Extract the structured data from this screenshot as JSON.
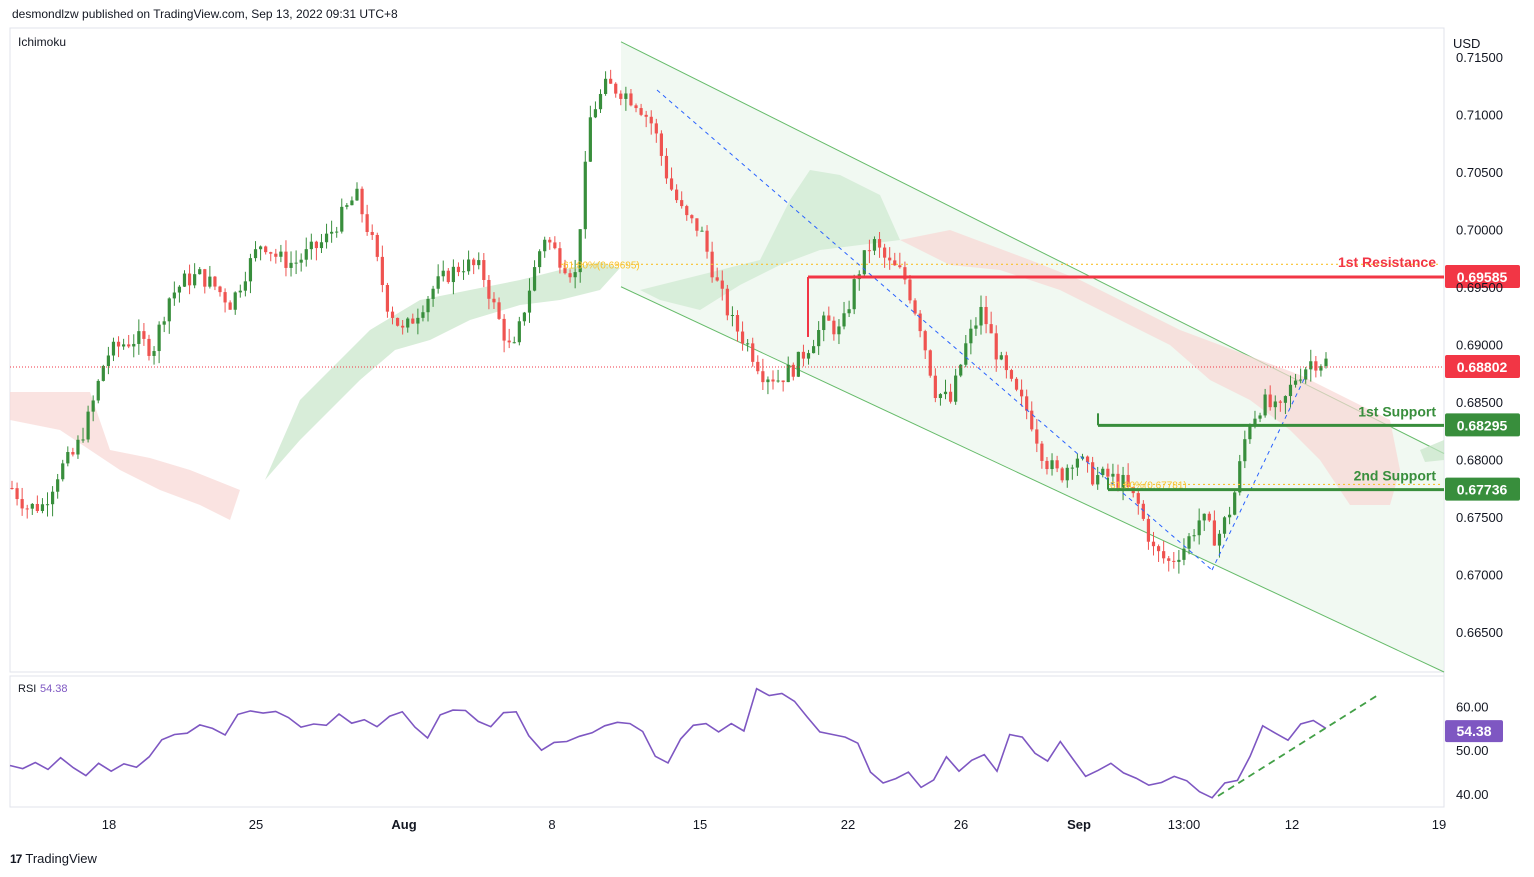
{
  "header": {
    "published": "desmondlzw published on TradingView.com, Sep 13, 2022 09:31 UTC+8"
  },
  "footer": {
    "brand": "TradingView",
    "logo_glyph": "17"
  },
  "colors": {
    "bull": "#26a69a",
    "candle_up": "#388e3c",
    "candle_down": "#ef5350",
    "resistance": "#f23645",
    "support": "#388e3c",
    "rsi": "#7e57c2",
    "channel_fill": "#e8f5e9",
    "cloud_green": "#c8e6c9",
    "cloud_red": "#f8d7d4",
    "fib": "#f9c22e",
    "current": "#f23645"
  },
  "chart_data": [
    {
      "type": "candlestick",
      "title": "",
      "indicator_label": "Ichimoku",
      "currency": "USD",
      "y_ticks": [
        "0.71500",
        "0.71000",
        "0.70500",
        "0.70000",
        "0.69500",
        "0.69000",
        "0.68500",
        "0.68000",
        "0.67500",
        "0.67000",
        "0.66500"
      ],
      "ylim": [
        0.6615,
        0.7175
      ],
      "x_ticks": [
        "18",
        "25",
        "Aug",
        "8",
        "15",
        "22",
        "26",
        "Sep",
        "13:00",
        "12",
        "19"
      ],
      "current_price": {
        "value": 0.68802,
        "label": "0.68802"
      },
      "levels": [
        {
          "name": "1st Resistance",
          "value": 0.69585,
          "label": "0.69585",
          "x_start": 0.6956,
          "kind": "resistance"
        },
        {
          "name": "1st Support",
          "value": 0.68295,
          "label": "0.68295",
          "x_start": 0.683,
          "kind": "support"
        },
        {
          "name": "2nd Support",
          "value": 0.67736,
          "label": "0.67736",
          "x_start": 0.6774,
          "kind": "support"
        }
      ],
      "fib_levels": [
        {
          "label": "61.80%(0.69695)",
          "value": 0.69695
        },
        {
          "label": "61.80%(0.67781)",
          "value": 0.67781
        }
      ],
      "channel": {
        "upper": [
          [
            0.7163,
            0.6805
          ]
        ],
        "lower": [
          [
            0.695,
            0.6615
          ]
        ]
      },
      "series_anchor_prices": [
        0.6775,
        0.6758,
        0.676,
        0.679,
        0.6805,
        0.684,
        0.689,
        0.69,
        0.6905,
        0.6895,
        0.694,
        0.6955,
        0.696,
        0.695,
        0.6935,
        0.6965,
        0.699,
        0.6975,
        0.697,
        0.698,
        0.699,
        0.701,
        0.703,
        0.699,
        0.6935,
        0.691,
        0.693,
        0.695,
        0.6962,
        0.697,
        0.6965,
        0.6925,
        0.689,
        0.6945,
        0.6995,
        0.6975,
        0.696,
        0.71,
        0.7125,
        0.712,
        0.711,
        0.709,
        0.704,
        0.701,
        0.7,
        0.6955,
        0.692,
        0.69,
        0.6875,
        0.687,
        0.688,
        0.69,
        0.692,
        0.691,
        0.696,
        0.699,
        0.697,
        0.696,
        0.692,
        0.686,
        0.685,
        0.69,
        0.693,
        0.689,
        0.686,
        0.684,
        0.68,
        0.6785,
        0.6805,
        0.6785,
        0.6785,
        0.678,
        0.676,
        0.672,
        0.671,
        0.6725,
        0.675,
        0.673,
        0.676,
        0.683,
        0.685,
        0.684,
        0.687,
        0.6885,
        0.6885
      ]
    },
    {
      "type": "line",
      "indicator_label": "RSI",
      "current_value": "54.38",
      "y_ticks": [
        "60.00",
        "50.00",
        "40.00"
      ],
      "ylim": [
        37,
        67
      ],
      "values": [
        46.5,
        45.8,
        47.2,
        45.6,
        48.3,
        46.0,
        44.2,
        47.0,
        45.2,
        46.9,
        46.1,
        48.5,
        52.4,
        53.6,
        53.9,
        55.8,
        55.0,
        53.5,
        58.2,
        59.0,
        58.5,
        58.9,
        57.5,
        55.3,
        56.0,
        55.7,
        58.3,
        56.2,
        57.0,
        55.4,
        57.8,
        58.8,
        55.3,
        52.8,
        58.1,
        59.2,
        59.1,
        56.6,
        55.4,
        58.6,
        58.8,
        53.3,
        50.0,
        51.8,
        52.0,
        53.2,
        54.0,
        55.6,
        56.4,
        56.1,
        54.3,
        48.6,
        47.1,
        52.6,
        55.7,
        56.1,
        54.2,
        56.1,
        54.4,
        64.1,
        62.5,
        63.0,
        61.2,
        57.6,
        54.2,
        53.6,
        53.0,
        51.6,
        45.0,
        42.5,
        43.5,
        45.0,
        41.5,
        43.2,
        48.5,
        45.2,
        47.7,
        49.0,
        45.2,
        53.6,
        53.0,
        49.3,
        47.5,
        52.0,
        48.0,
        44.0,
        45.4,
        47.0,
        44.8,
        43.6,
        42.0,
        42.6,
        44.0,
        43.0,
        40.5,
        39.1,
        42.5,
        43.1,
        48.6,
        55.6,
        53.9,
        52.3,
        56.0,
        56.8,
        55.0
      ]
    }
  ]
}
